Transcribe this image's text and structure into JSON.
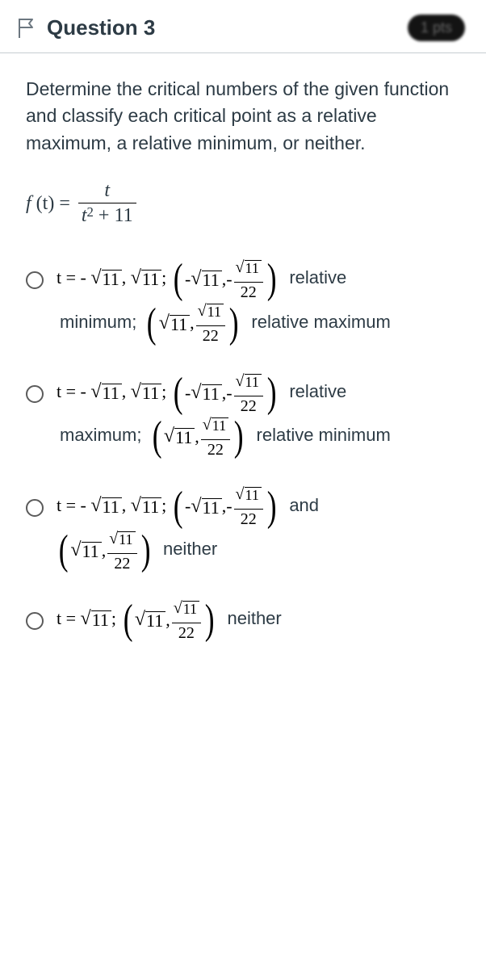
{
  "header": {
    "flag_color": "#6c7780",
    "title": "Question 3",
    "points_label": "1 pts",
    "border_color": "#c7cdd1"
  },
  "prompt_text": "Determine the critical numbers of the given function and classify each critical point as a relative maximum, a relative minimum, or neither.",
  "function": {
    "lhs_italic": "f",
    "lhs_paren": " (t) = ",
    "numerator": "t",
    "denominator_t": "t",
    "denominator_exp": "2",
    "denominator_rest": " + 11"
  },
  "math_tokens": {
    "t_eq_neg": "t = - ",
    "t_eq": "t = ",
    "comma": ", ",
    "semicolon": "; ",
    "neg": "- ",
    "surd": "√",
    "eleven": "11",
    "twenty_two": "22",
    "open_paren": "(",
    "close_paren": ")"
  },
  "options": [
    {
      "clauses": [
        {
          "prefix": "t_eq_neg",
          "parts": [
            "sqrt11",
            "comma",
            "sqrt11",
            "semicolon",
            "bparen_neg_sqrt11_neg_sqrt11over22"
          ],
          "tail_word": "relative"
        },
        {
          "prefix": null,
          "lead_word": "minimum; ",
          "parts": [
            "bparen_sqrt11_sqrt11over22"
          ],
          "tail_word": "relative maximum"
        }
      ]
    },
    {
      "clauses": [
        {
          "prefix": "t_eq_neg",
          "parts": [
            "sqrt11",
            "comma",
            "sqrt11",
            "semicolon",
            "bparen_neg_sqrt11_neg_sqrt11over22"
          ],
          "tail_word": "relative"
        },
        {
          "prefix": null,
          "lead_word": "maximum; ",
          "parts": [
            "bparen_sqrt11_sqrt11over22"
          ],
          "tail_word": "relative minimum"
        }
      ]
    },
    {
      "clauses": [
        {
          "prefix": "t_eq_neg",
          "parts": [
            "sqrt11",
            "comma",
            "sqrt11",
            "semicolon",
            "bparen_neg_sqrt11_neg_sqrt11over22"
          ],
          "tail_word": "and"
        },
        {
          "prefix": null,
          "parts": [
            "bparen_sqrt11_sqrt11over22"
          ],
          "tail_word": "neither"
        }
      ]
    },
    {
      "clauses": [
        {
          "prefix": "t_eq",
          "parts": [
            "sqrt11",
            "semicolon",
            "bparen_sqrt11_sqrt11over22"
          ],
          "tail_word": "neither"
        }
      ]
    }
  ],
  "colors": {
    "text": "#2d3b45",
    "math": "#000000",
    "background": "#ffffff"
  }
}
